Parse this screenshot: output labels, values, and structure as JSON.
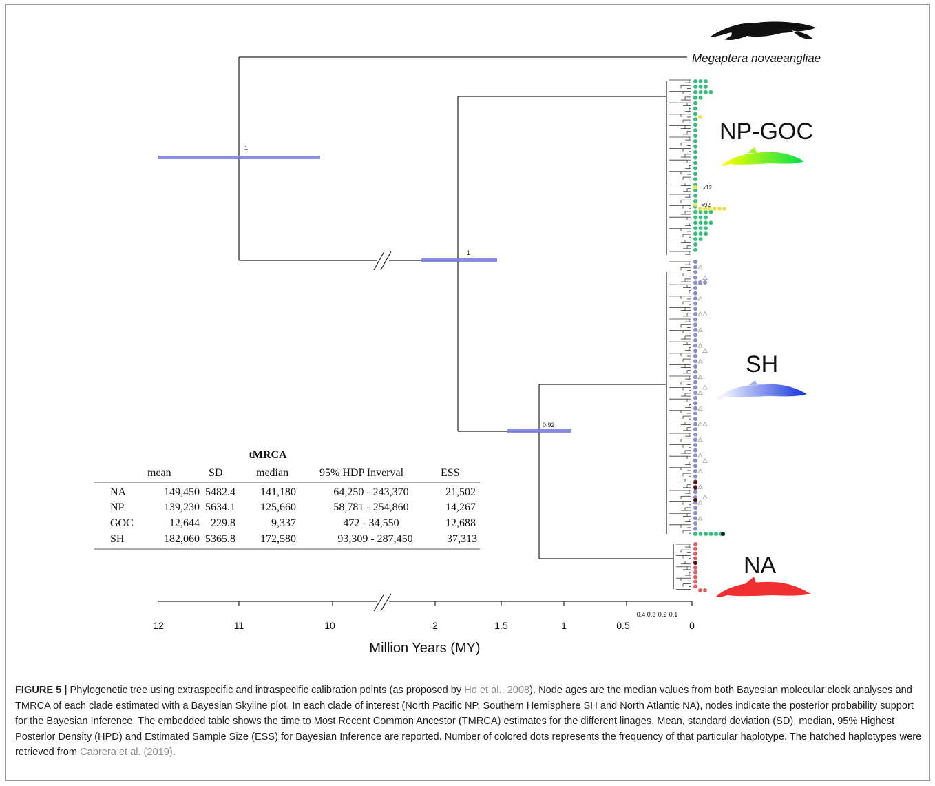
{
  "figure": {
    "outgroup_label": "Megaptera novaeangliae",
    "clades": [
      {
        "name": "NP-GOC",
        "whale_colors": [
          "#ffff00",
          "#00e04a"
        ]
      },
      {
        "name": "SH",
        "whale_colors": [
          "#ffffff",
          "#1030e0"
        ]
      },
      {
        "name": "NA",
        "whale_colors": [
          "#f03030",
          "#f03030"
        ]
      }
    ],
    "node_support": [
      {
        "value": "1"
      },
      {
        "value": "1"
      },
      {
        "value": "0.92"
      }
    ],
    "haplotype_counts": [
      "x12",
      "x92"
    ],
    "dot_colors": {
      "np_goc": "#3cbf82",
      "goc": "#f0e050",
      "sh": "#8a90c8",
      "sh_hatched": "#c8c8c8",
      "na": "#e06060",
      "dark": "#5a1010"
    },
    "axis": {
      "label": "Million Years (MY)",
      "ticks_main": [
        "12",
        "11",
        "10",
        "2",
        "1.5",
        "1",
        "0.5",
        "0"
      ],
      "ticks_minor": [
        "0.4",
        "0.3",
        "0.2",
        "0.1"
      ]
    },
    "table": {
      "title": "tMRCA",
      "headers": [
        "",
        "mean",
        "SD",
        "median",
        "95% HDP Inverval",
        "ESS"
      ],
      "rows": [
        [
          "NA",
          "149,450",
          "5482.4",
          "141,180",
          "64,250 - 243,370",
          "21,502"
        ],
        [
          "NP",
          "139,230",
          "5634.1",
          "125,660",
          "58,781 - 254,860",
          "14,267"
        ],
        [
          "GOC",
          "12,644",
          "229.8",
          "9,337",
          "472 - 34,550",
          "12,688"
        ],
        [
          "SH",
          "182,060",
          "5365.8",
          "172,580",
          "93,309 - 287,450",
          "37,313"
        ]
      ]
    }
  },
  "caption": {
    "label": "FIGURE 5 |",
    "part1": " Phylogenetic tree using extraspecific and intraspecific calibration points (as proposed by ",
    "cite1": "Ho et al., 2008",
    "part2": "). Node ages are the median values from both Bayesian molecular clock analyses and TMRCA of each clade estimated with a Bayesian Skyline plot. In each clade of interest (North Pacific NP, Southern Hemisphere SH and North Atlantic NA), nodes indicate the posterior probability support for the Bayesian Inference. The embedded table shows the time to Most Recent Common Ancestor (TMRCA) estimates for the different linages. Mean, standard deviation (SD), median, 95% Highest Posterior Density (HPD) and Estimated Sample Size (ESS) for Bayesian Inference are reported. Number of colored dots represents the frequency of that particular haplotype. The hatched haplotypes were retrieved from ",
    "cite2": "Cabrera et al. (2019)",
    "part3": "."
  }
}
